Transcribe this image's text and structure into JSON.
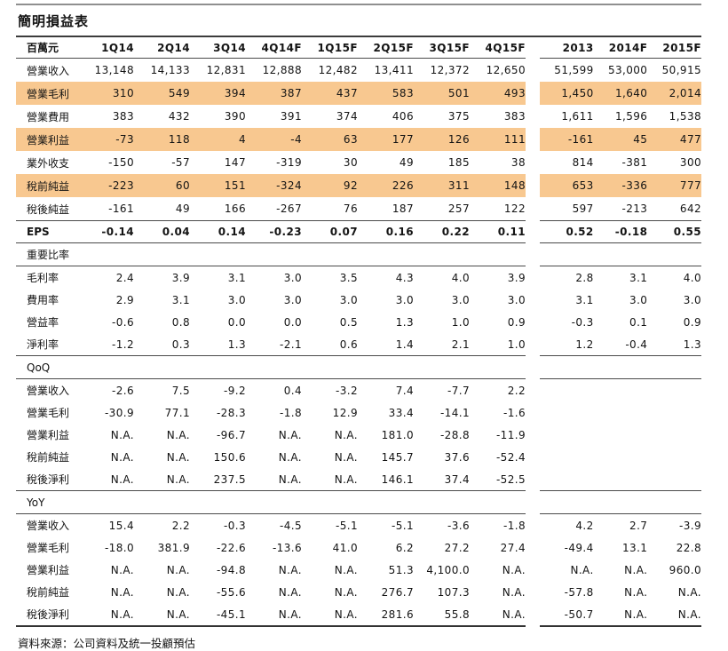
{
  "title": "簡明損益表",
  "footer": "資料來源：公司資料及統一投顧預估",
  "colors": {
    "highlight": "#F8C890"
  },
  "table": {
    "unit_label": "百萬元",
    "quarter_columns": [
      "1Q14",
      "2Q14",
      "3Q14",
      "4Q14F",
      "1Q15F",
      "2Q15F",
      "3Q15F",
      "4Q15F"
    ],
    "year_columns": [
      "2013",
      "2014F",
      "2015F"
    ],
    "sections": [
      {
        "id": "income",
        "label": null,
        "rows": [
          {
            "label": "營業收入",
            "highlight": false,
            "bold": false,
            "q": [
              "13,148",
              "14,133",
              "12,831",
              "12,888",
              "12,482",
              "13,411",
              "12,372",
              "12,650"
            ],
            "y": [
              "51,599",
              "53,000",
              "50,915"
            ]
          },
          {
            "label": "營業毛利",
            "highlight": true,
            "bold": false,
            "q": [
              "310",
              "549",
              "394",
              "387",
              "437",
              "583",
              "501",
              "493"
            ],
            "y": [
              "1,450",
              "1,640",
              "2,014"
            ]
          },
          {
            "label": "營業費用",
            "highlight": false,
            "bold": false,
            "q": [
              "383",
              "432",
              "390",
              "391",
              "374",
              "406",
              "375",
              "383"
            ],
            "y": [
              "1,611",
              "1,596",
              "1,538"
            ]
          },
          {
            "label": "營業利益",
            "highlight": true,
            "bold": false,
            "q": [
              "-73",
              "118",
              "4",
              "-4",
              "63",
              "177",
              "126",
              "111"
            ],
            "y": [
              "-161",
              "45",
              "477"
            ]
          },
          {
            "label": "業外收支",
            "highlight": false,
            "bold": false,
            "q": [
              "-150",
              "-57",
              "147",
              "-319",
              "30",
              "49",
              "185",
              "38"
            ],
            "y": [
              "814",
              "-381",
              "300"
            ]
          },
          {
            "label": "稅前純益",
            "highlight": true,
            "bold": false,
            "q": [
              "-223",
              "60",
              "151",
              "-324",
              "92",
              "226",
              "311",
              "148"
            ],
            "y": [
              "653",
              "-336",
              "777"
            ]
          },
          {
            "label": "稅後純益",
            "highlight": false,
            "bold": false,
            "q": [
              "-161",
              "49",
              "166",
              "-267",
              "76",
              "187",
              "257",
              "122"
            ],
            "y": [
              "597",
              "-213",
              "642"
            ]
          }
        ]
      },
      {
        "id": "eps",
        "label": null,
        "rows": [
          {
            "label": "EPS",
            "highlight": false,
            "bold": true,
            "q": [
              "-0.14",
              "0.04",
              "0.14",
              "-0.23",
              "0.07",
              "0.16",
              "0.22",
              "0.11"
            ],
            "y": [
              "0.52",
              "-0.18",
              "0.55"
            ]
          }
        ]
      },
      {
        "id": "ratios",
        "label": "重要比率",
        "rows": [
          {
            "label": "毛利率",
            "highlight": false,
            "bold": false,
            "q": [
              "2.4",
              "3.9",
              "3.1",
              "3.0",
              "3.5",
              "4.3",
              "4.0",
              "3.9"
            ],
            "y": [
              "2.8",
              "3.1",
              "4.0"
            ]
          },
          {
            "label": "費用率",
            "highlight": false,
            "bold": false,
            "q": [
              "2.9",
              "3.1",
              "3.0",
              "3.0",
              "3.0",
              "3.0",
              "3.0",
              "3.0"
            ],
            "y": [
              "3.1",
              "3.0",
              "3.0"
            ]
          },
          {
            "label": "營益率",
            "highlight": false,
            "bold": false,
            "q": [
              "-0.6",
              "0.8",
              "0.0",
              "0.0",
              "0.5",
              "1.3",
              "1.0",
              "0.9"
            ],
            "y": [
              "-0.3",
              "0.1",
              "0.9"
            ]
          },
          {
            "label": "淨利率",
            "highlight": false,
            "bold": false,
            "q": [
              "-1.2",
              "0.3",
              "1.3",
              "-2.1",
              "0.6",
              "1.4",
              "2.1",
              "1.0"
            ],
            "y": [
              "1.2",
              "-0.4",
              "1.3"
            ]
          }
        ]
      },
      {
        "id": "qoq",
        "label": "QoQ",
        "rows": [
          {
            "label": "營業收入",
            "highlight": false,
            "bold": false,
            "q": [
              "-2.6",
              "7.5",
              "-9.2",
              "0.4",
              "-3.2",
              "7.4",
              "-7.7",
              "2.2"
            ],
            "y": [
              "",
              "",
              ""
            ]
          },
          {
            "label": "營業毛利",
            "highlight": false,
            "bold": false,
            "q": [
              "-30.9",
              "77.1",
              "-28.3",
              "-1.8",
              "12.9",
              "33.4",
              "-14.1",
              "-1.6"
            ],
            "y": [
              "",
              "",
              ""
            ]
          },
          {
            "label": "營業利益",
            "highlight": false,
            "bold": false,
            "q": [
              "N.A.",
              "N.A.",
              "-96.7",
              "N.A.",
              "N.A.",
              "181.0",
              "-28.8",
              "-11.9"
            ],
            "y": [
              "",
              "",
              ""
            ]
          },
          {
            "label": "稅前純益",
            "highlight": false,
            "bold": false,
            "q": [
              "N.A.",
              "N.A.",
              "150.6",
              "N.A.",
              "N.A.",
              "145.7",
              "37.6",
              "-52.4"
            ],
            "y": [
              "",
              "",
              ""
            ]
          },
          {
            "label": "稅後淨利",
            "highlight": false,
            "bold": false,
            "q": [
              "N.A.",
              "N.A.",
              "237.5",
              "N.A.",
              "N.A.",
              "146.1",
              "37.4",
              "-52.5"
            ],
            "y": [
              "",
              "",
              ""
            ]
          }
        ]
      },
      {
        "id": "yoy",
        "label": "YoY",
        "rows": [
          {
            "label": "營業收入",
            "highlight": false,
            "bold": false,
            "q": [
              "15.4",
              "2.2",
              "-0.3",
              "-4.5",
              "-5.1",
              "-5.1",
              "-3.6",
              "-1.8"
            ],
            "y": [
              "4.2",
              "2.7",
              "-3.9"
            ]
          },
          {
            "label": "營業毛利",
            "highlight": false,
            "bold": false,
            "q": [
              "-18.0",
              "381.9",
              "-22.6",
              "-13.6",
              "41.0",
              "6.2",
              "27.2",
              "27.4"
            ],
            "y": [
              "-49.4",
              "13.1",
              "22.8"
            ]
          },
          {
            "label": "營業利益",
            "highlight": false,
            "bold": false,
            "q": [
              "N.A.",
              "N.A.",
              "-94.8",
              "N.A.",
              "N.A.",
              "51.3",
              "4,100.0",
              "N.A."
            ],
            "y": [
              "N.A.",
              "N.A.",
              "960.0"
            ]
          },
          {
            "label": "稅前純益",
            "highlight": false,
            "bold": false,
            "q": [
              "N.A.",
              "N.A.",
              "-55.6",
              "N.A.",
              "N.A.",
              "276.7",
              "107.3",
              "N.A."
            ],
            "y": [
              "-57.8",
              "N.A.",
              "N.A."
            ]
          },
          {
            "label": "稅後淨利",
            "highlight": false,
            "bold": false,
            "q": [
              "N.A.",
              "N.A.",
              "-45.1",
              "N.A.",
              "N.A.",
              "281.6",
              "55.8",
              "N.A."
            ],
            "y": [
              "-50.7",
              "N.A.",
              "N.A."
            ]
          }
        ]
      }
    ]
  }
}
